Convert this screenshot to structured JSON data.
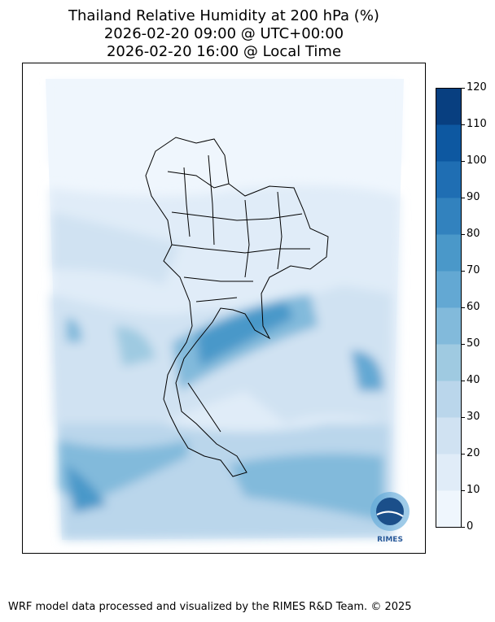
{
  "title": {
    "line1": "Thailand Relative Humidity at 200 hPa (%)",
    "line2": "2026-02-20 09:00 @ UTC+00:00",
    "line3": "2026-02-20 16:00 @ Local Time"
  },
  "colorbar": {
    "ticks": [
      "0",
      "10",
      "20",
      "30",
      "40",
      "50",
      "60",
      "70",
      "80",
      "90",
      "100",
      "110",
      "120"
    ],
    "colors": [
      "#eff6fd",
      "#e0ecf8",
      "#d0e2f2",
      "#bad6eb",
      "#9fcae1",
      "#82badb",
      "#63a8d3",
      "#4a98c9",
      "#3282be",
      "#1f6eb3",
      "#0d58a1",
      "#083f80"
    ]
  },
  "logo": {
    "text": "RIMES"
  },
  "footer": "WRF model data processed and visualized by the RIMES R&D Team. © 2025"
}
